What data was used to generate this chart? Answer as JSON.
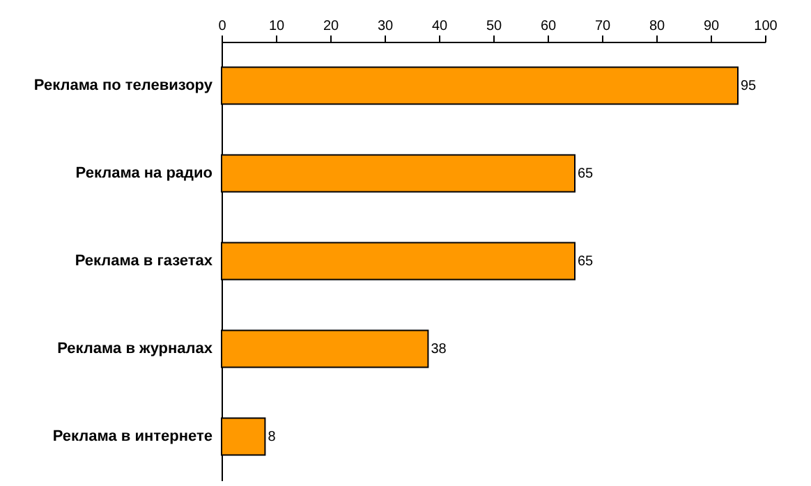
{
  "chart_data": {
    "type": "bar",
    "orientation": "horizontal",
    "categories": [
      "Реклама по телевизору",
      "Реклама на радио",
      "Реклама в газетах",
      "Реклама в журналах",
      "Реклама в интернете"
    ],
    "values": [
      95,
      65,
      65,
      38,
      8
    ],
    "color": "#ff9900",
    "xlim": [
      0,
      100
    ],
    "xticks": [
      0,
      10,
      20,
      30,
      40,
      50,
      60,
      70,
      80,
      90,
      100
    ],
    "data_labels": true,
    "grid": false
  }
}
